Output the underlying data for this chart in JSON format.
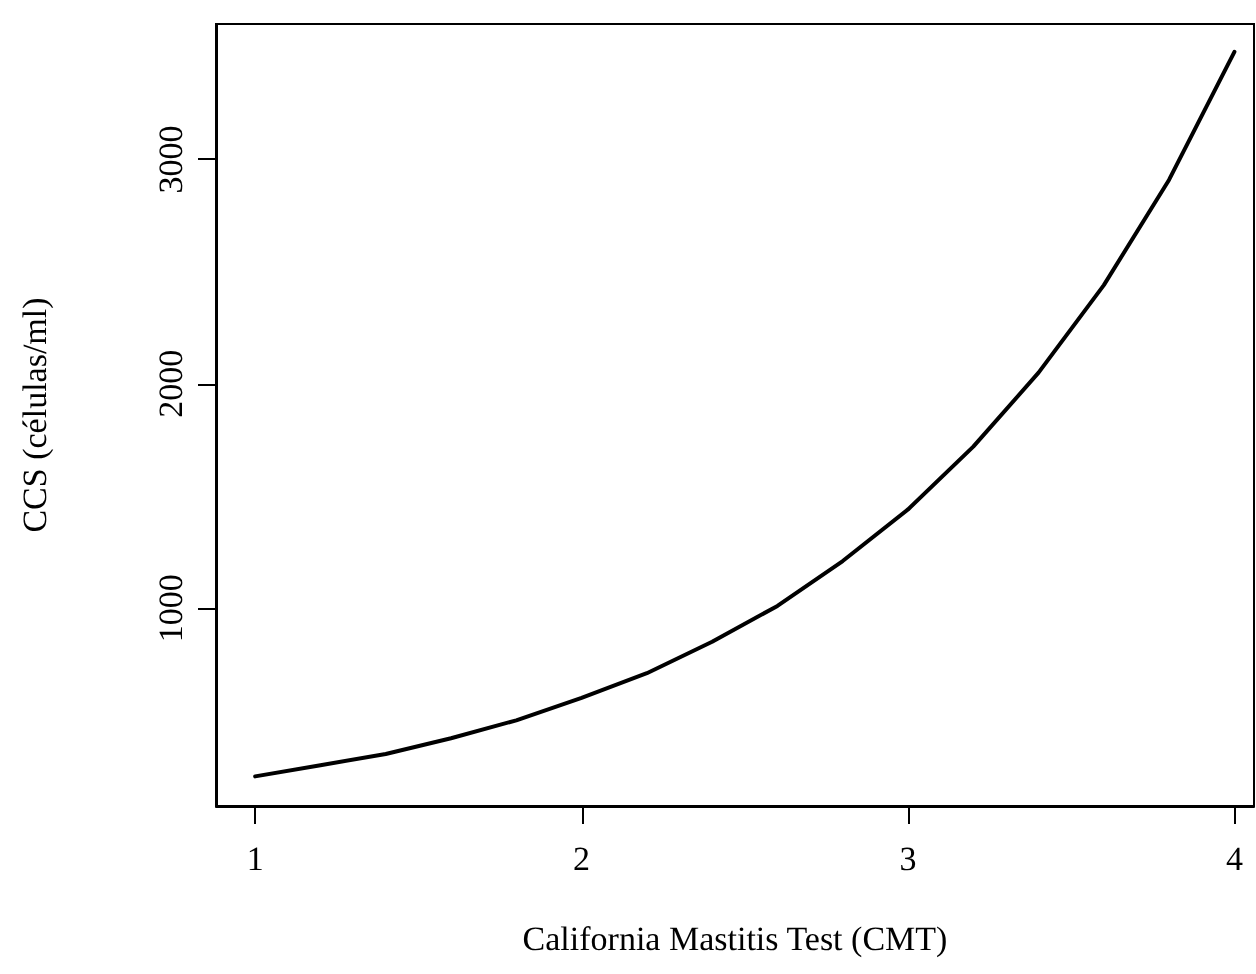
{
  "chart_data": {
    "type": "line",
    "xlabel": "California Mastitis Test (CMT)",
    "ylabel": "CCS (células/ml)",
    "x": [
      1,
      1.2,
      1.4,
      1.6,
      1.8,
      2,
      2.2,
      2.4,
      2.6,
      2.8,
      3,
      3.2,
      3.4,
      3.6,
      3.8,
      4
    ],
    "series": [
      {
        "color": "#000000",
        "values": [
          250,
          300,
          350,
          420,
          500,
          600,
          710,
          850,
          1010,
          1210,
          1440,
          1720,
          2050,
          2440,
          2910,
          3480
        ]
      }
    ],
    "xlim": [
      0.88,
      4.06
    ],
    "xticks": [
      1,
      2,
      3,
      4
    ],
    "ylim": [
      118,
      3604
    ],
    "yticks": [
      1000,
      2000,
      3000
    ],
    "grid": false,
    "marker": "none",
    "line_style": "solid"
  }
}
